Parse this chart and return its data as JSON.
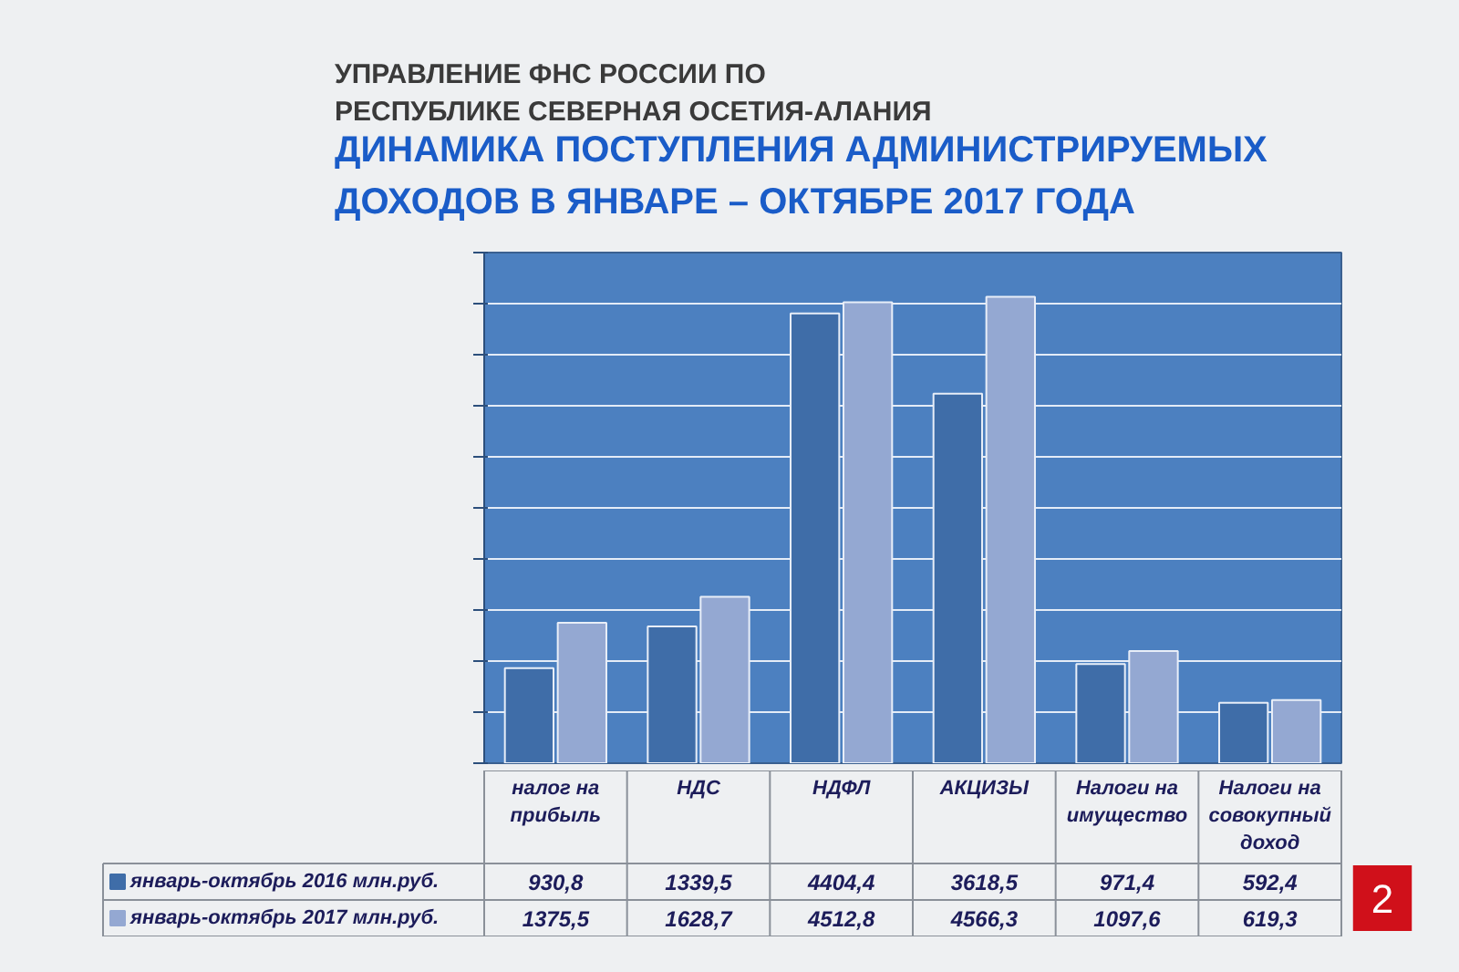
{
  "chart_data": {
    "type": "bar",
    "subtitle": "УПРАВЛЕНИЕ ФНС РОССИИ ПО РЕСПУБЛИКЕ СЕВЕРНАЯ ОСЕТИЯ-АЛАНИЯ",
    "title": "ДИНАМИКА ПОСТУПЛЕНИЯ АДМИНИСТРИРУЕМЫХ ДОХОДОВ В ЯНВАРЕ – ОКТЯБРЕ 2017 ГОДА",
    "categories": [
      "налог на прибыль",
      "НДС",
      "НДФЛ",
      "АКЦИЗЫ",
      "Налоги на имущество",
      "Налоги на совокупный доход"
    ],
    "series": [
      {
        "name": "январь-октябрь 2016 млн.руб.",
        "color": "#3f6da8",
        "values": [
          930.8,
          1339.5,
          4404.4,
          3618.5,
          971.4,
          592.4
        ],
        "value_labels": [
          "930,8",
          "1339,5",
          "4404,4",
          "3618,5",
          "971,4",
          "592,4"
        ]
      },
      {
        "name": "январь-октябрь 2017 млн.руб.",
        "color": "#94a8d2",
        "values": [
          1375.5,
          1628.7,
          4512.8,
          4566.3,
          1097.6,
          619.3
        ],
        "value_labels": [
          "1375,5",
          "1628,7",
          "4512,8",
          "4566,3",
          "1097,6",
          "619,3"
        ]
      }
    ],
    "ylim": [
      0,
      5000
    ],
    "yticks": [
      {
        "value": 0,
        "label": null
      },
      {
        "value": 500,
        "label": null
      },
      {
        "value": 1000,
        "label": null
      },
      {
        "value": 1500,
        "label": null
      },
      {
        "value": 2000,
        "label": null
      },
      {
        "value": 2500,
        "label": null
      },
      {
        "value": 3000,
        "label": null
      },
      {
        "value": 3500,
        "label": null
      },
      {
        "value": 4000,
        "label": null
      },
      {
        "value": 4500,
        "label": null
      },
      {
        "value": 5000,
        "label": null
      }
    ],
    "grid": "y",
    "legend": "bottom",
    "tick_labels": "x",
    "annotations": [
      "2"
    ]
  }
}
